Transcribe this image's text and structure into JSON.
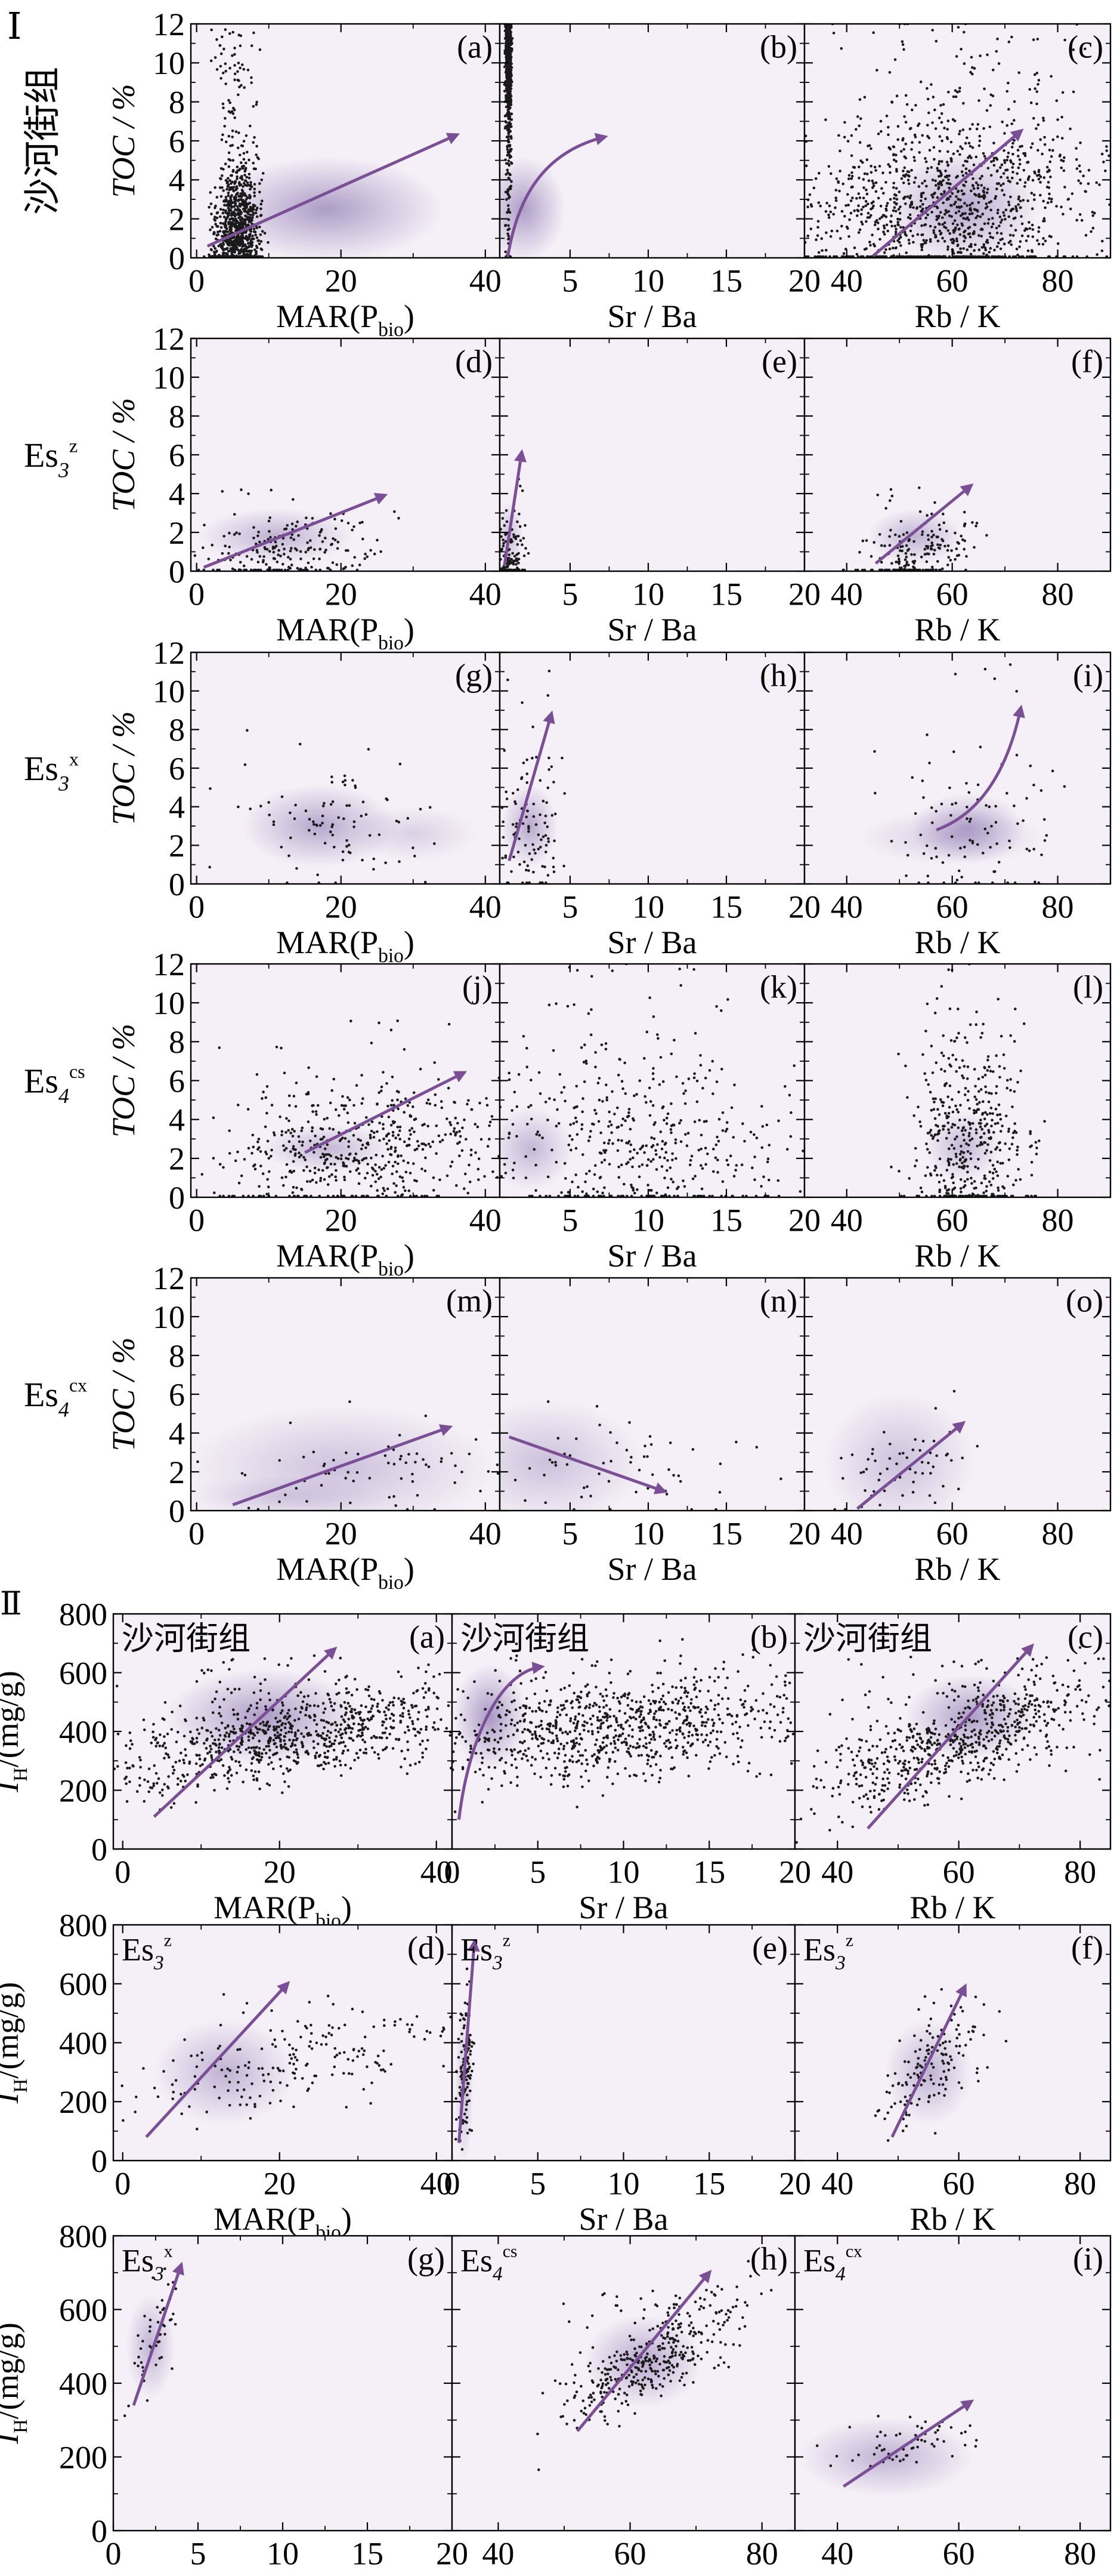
{
  "colors": {
    "background": "#f5f0f7",
    "density": "#6b4f9a",
    "arrow": "#7a4f96",
    "points": "#1a1a1a",
    "axis": "#000000"
  },
  "section_labels": [
    "Ⅰ",
    "Ⅱ"
  ],
  "row_labels_I": [
    {
      "main": "沙河街组",
      "sub": "",
      "sup": ""
    },
    {
      "main": "Es",
      "sub": "3",
      "sup": "z"
    },
    {
      "main": "Es",
      "sub": "3",
      "sup": "x"
    },
    {
      "main": "Es",
      "sub": "4",
      "sup": "cs"
    },
    {
      "main": "Es",
      "sub": "4",
      "sup": "cx"
    }
  ],
  "axis_titles": {
    "toc": "TOC / %",
    "ih_main": "I",
    "ih_sub": "H",
    "ih_rest": "/(mg/g)",
    "mar_main": "MAR(P",
    "mar_sub": "bio",
    "mar_end": ")",
    "srba": "Sr / Ba",
    "rbk": "Rb / K"
  },
  "chart_data": [
    {
      "type": "scatter",
      "section": "I",
      "y_axis": {
        "label": "TOC / %",
        "range": [
          0,
          12
        ],
        "ticks": [
          0,
          2,
          4,
          6,
          8,
          10,
          12
        ]
      },
      "x_axes": {
        "MAR": {
          "range": [
            -8,
            420
          ],
          "ticks": [
            0,
            20,
            40
          ],
          "tick_scale": 10
        },
        "SrBa": {
          "range": [
            0.5,
            20
          ],
          "ticks": [
            5,
            10,
            15,
            20
          ]
        },
        "RbK": {
          "range": [
            32,
            90
          ],
          "ticks": [
            40,
            60,
            80
          ]
        }
      },
      "panels": [
        {
          "row": 0,
          "col": 0,
          "label": "(a)",
          "x": "MAR",
          "cloud": [
            200,
            30,
            80,
            11.5,
            4,
            1200,
            0.1
          ],
          "arrow": [
            [
              15,
              0.6
            ],
            [
              360,
              6.3
            ]
          ],
          "dens": [
            [
              180,
              2.5,
              90,
              1.5,
              0.8
            ]
          ]
        },
        {
          "row": 0,
          "col": 1,
          "label": "(b)",
          "x": "SrBa",
          "cloud": [
            2.5,
            1.2,
            0.9,
            12,
            2.6,
            1100,
            0.15
          ],
          "arrow": [
            [
              1,
              0
            ],
            [
              1.6,
              3.0
            ],
            [
              3.2,
              5.4
            ],
            [
              7.2,
              6.2
            ]
          ],
          "dens": [
            [
              2.0,
              2.5,
              1.5,
              1.5,
              0.8
            ]
          ]
        },
        {
          "row": 0,
          "col": 2,
          "label": "(c)",
          "x": "RbK",
          "cloud": [
            60,
            35,
            80,
            12,
            2.6,
            1300,
            0.12
          ],
          "arrow": [
            [
              45,
              0.1
            ],
            [
              73,
              6.5
            ]
          ],
          "dens": [
            [
              62,
              2.6,
              8,
              1.6,
              0.7
            ]
          ]
        },
        {
          "row": 1,
          "col": 0,
          "label": "(d)",
          "x": "MAR",
          "cloud": [
            105,
            30,
            230,
            4.3,
            0.7,
            220,
            0.3
          ],
          "arrow": [
            [
              10,
              0.2
            ],
            [
              260,
              3.9
            ]
          ],
          "dens": [
            [
              110,
              1.8,
              60,
              0.8,
              0.6
            ]
          ]
        },
        {
          "row": 1,
          "col": 1,
          "label": "(e)",
          "x": "SrBa",
          "cloud": [
            1.1,
            0.3,
            1.9,
            5,
            0.6,
            140,
            0.05
          ],
          "arrow": [
            [
              0.8,
              0.3
            ],
            [
              1.9,
              6.1
            ]
          ],
          "dens": [
            [
              1.1,
              1.8,
              0.5,
              1.0,
              0.5
            ]
          ]
        },
        {
          "row": 1,
          "col": 2,
          "label": "(f)",
          "x": "RbK",
          "cloud": [
            53,
            45,
            62,
            4.2,
            0.6,
            200,
            0.3
          ],
          "arrow": [
            [
              45.5,
              0.4
            ],
            [
              63.5,
              4.4
            ]
          ],
          "dens": [
            [
              53,
              1.8,
              5,
              0.8,
              0.6
            ]
          ]
        },
        {
          "row": 2,
          "col": 0,
          "label": "(g)",
          "x": "MAR",
          "cloud": [
            170,
            70,
            290,
            9,
            3.0,
            90,
            0
          ],
          "arrow": null,
          "dens": [
            [
              170,
              3.0,
              60,
              1.2,
              0.7
            ],
            [
              300,
              2.6,
              50,
              0.8,
              0.3
            ]
          ]
        },
        {
          "row": 2,
          "col": 1,
          "label": "(h)",
          "x": "SrBa",
          "cloud": [
            2.2,
            0.8,
            4.2,
            11,
            2.8,
            110,
            0
          ],
          "arrow": [
            [
              1.1,
              1.2
            ],
            [
              2.3,
              4.6
            ],
            [
              3.8,
              8.8
            ]
          ],
          "dens": [
            [
              2.4,
              3.0,
              1.0,
              1.2,
              0.7
            ]
          ]
        },
        {
          "row": 2,
          "col": 2,
          "label": "(i)",
          "x": "RbK",
          "cloud": [
            63,
            50,
            76,
            11,
            2.8,
            100,
            0
          ],
          "arrow": [
            [
              57,
              2.8
            ],
            [
              69,
              4.0
            ],
            [
              73,
              9.1
            ]
          ],
          "dens": [
            [
              63,
              2.9,
              6,
              1.0,
              0.7
            ],
            [
              60,
              2.4,
              10,
              0.8,
              0.35
            ]
          ]
        },
        {
          "row": 3,
          "col": 0,
          "label": "(j)",
          "x": "MAR",
          "cloud": [
            190,
            80,
            380,
            9,
            2.3,
            550,
            0.15
          ],
          "arrow": [
            [
              150,
              2.3
            ],
            [
              370,
              6.4
            ]
          ],
          "dens": [
            [
              180,
              2.5,
              50,
              0.7,
              0.55
            ]
          ]
        },
        {
          "row": 3,
          "col": 1,
          "label": "(k)",
          "x": "SrBa",
          "cloud": [
            3.0,
            1.0,
            17,
            12,
            2.8,
            480,
            0
          ],
          "arrow": null,
          "dens": [
            [
              2.5,
              2.5,
              1.5,
              1.2,
              0.55
            ]
          ]
        },
        {
          "row": 3,
          "col": 2,
          "label": "(l)",
          "x": "RbK",
          "cloud": [
            62,
            54,
            72,
            12,
            2.8,
            450,
            0
          ],
          "arrow": null,
          "dens": [
            [
              62,
              2.6,
              4,
              1.0,
              0.55
            ]
          ]
        },
        {
          "row": 4,
          "col": 0,
          "label": "(m)",
          "x": "MAR",
          "cloud": [
            200,
            60,
            380,
            6,
            2.0,
            70,
            0.15
          ],
          "arrow": [
            [
              50,
              0.3
            ],
            [
              350,
              4.3
            ]
          ],
          "dens": [
            [
              200,
              2.2,
              120,
              1.8,
              0.45
            ],
            [
              120,
              0.7,
              80,
              0.6,
              0.3
            ]
          ]
        },
        {
          "row": 4,
          "col": 1,
          "label": "(n)",
          "x": "SrBa",
          "cloud": [
            5,
            1.0,
            14,
            7,
            2.0,
            60,
            0
          ],
          "arrow": [
            [
              1.1,
              3.8
            ],
            [
              11,
              1.0
            ]
          ],
          "dens": [
            [
              3.5,
              2.5,
              3.5,
              1.8,
              0.45
            ]
          ]
        },
        {
          "row": 4,
          "col": 2,
          "label": "(o)",
          "x": "RbK",
          "cloud": [
            50,
            40,
            62,
            6,
            2.0,
            60,
            0.15
          ],
          "arrow": [
            [
              42,
              0.1
            ],
            [
              62,
              4.5
            ]
          ],
          "dens": [
            [
              50,
              2.5,
              8,
              2.0,
              0.45
            ]
          ]
        }
      ]
    },
    {
      "type": "scatter",
      "section": "II",
      "y_axis": {
        "label": "I_H/(mg/g)",
        "range": [
          0,
          800
        ],
        "ticks": [
          0,
          200,
          400,
          600,
          800
        ]
      },
      "x_axes": {
        "MAR": {
          "range": [
            -12,
            420
          ],
          "ticks": [
            0,
            20,
            40
          ],
          "tick_scale": 10
        },
        "SrBa": {
          "range": [
            0,
            20
          ],
          "ticks": [
            0,
            5,
            10,
            15,
            20
          ]
        },
        "RbK": {
          "range": [
            33,
            85
          ],
          "ticks": [
            40,
            60,
            80
          ]
        }
      },
      "panels": [
        {
          "row": 0,
          "col": 0,
          "label": "(a)",
          "title": {
            "main": "沙河街组",
            "sub": "",
            "sup": ""
          },
          "x": "MAR",
          "cloud": [
            200,
            40,
            400,
            650,
            380,
            900,
            0.25
          ],
          "arrow": [
            [
              40,
              110
            ],
            [
              270,
              680
            ]
          ],
          "dens": [
            [
              180,
              450,
              70,
              90,
              0.8
            ]
          ]
        },
        {
          "row": 0,
          "col": 1,
          "label": "(b)",
          "title": {
            "main": "沙河街组",
            "sub": "",
            "sup": ""
          },
          "x": "SrBa",
          "cloud": [
            3.5,
            0.5,
            18,
            700,
            380,
            900,
            0.1
          ],
          "arrow": [
            [
              0.4,
              100
            ],
            [
              0.9,
              350
            ],
            [
              2.6,
              600
            ],
            [
              5.2,
              620
            ]
          ],
          "dens": [
            [
              2.2,
              450,
              1.2,
              100,
              0.85
            ]
          ]
        },
        {
          "row": 0,
          "col": 2,
          "label": "(c)",
          "title": {
            "main": "沙河街组",
            "sub": "",
            "sup": ""
          },
          "x": "RbK",
          "cloud": [
            60,
            42,
            78,
            640,
            360,
            700,
            0.4
          ],
          "arrow": [
            [
              45,
              70
            ],
            [
              72,
              690
            ]
          ],
          "dens": [
            [
              62,
              450,
              6,
              80,
              0.8
            ]
          ]
        },
        {
          "row": 1,
          "col": 0,
          "label": "(d)",
          "title": {
            "main": "Es",
            "sub": "3",
            "sup": "z"
          },
          "x": "MAR",
          "cloud": [
            120,
            40,
            380,
            560,
            290,
            200,
            0.3
          ],
          "arrow": [
            [
              30,
              80
            ],
            [
              210,
              600
            ]
          ],
          "dens": [
            [
              130,
              300,
              50,
              100,
              0.6
            ]
          ]
        },
        {
          "row": 1,
          "col": 1,
          "label": "(e)",
          "title": {
            "main": "Es",
            "sub": "3",
            "sup": "z"
          },
          "x": "SrBa",
          "cloud": [
            0.8,
            0.4,
            1.2,
            750,
            300,
            120,
            0.1
          ],
          "arrow": [
            [
              0.4,
              60
            ],
            [
              1.3,
              740
            ]
          ],
          "dens": [
            [
              0.7,
              250,
              0.3,
              150,
              0.5
            ]
          ]
        },
        {
          "row": 1,
          "col": 2,
          "label": "(f)",
          "title": {
            "main": "Es",
            "sub": "3",
            "sup": "z"
          },
          "x": "RbK",
          "cloud": [
            55,
            48,
            62,
            580,
            300,
            150,
            0.4
          ],
          "arrow": [
            [
              49,
              80
            ],
            [
              61,
              590
            ]
          ],
          "dens": [
            [
              55,
              300,
              4,
              100,
              0.6
            ]
          ]
        },
        {
          "row": 2,
          "col": 0,
          "label": "(g)",
          "title": {
            "main": "Es",
            "sub": "3",
            "sup": "x"
          },
          "x": "SrBa",
          "cloud": [
            2.2,
            1.0,
            3.8,
            700,
            500,
            50,
            0.4
          ],
          "arrow": [
            [
              1.2,
              340
            ],
            [
              4.0,
              720
            ]
          ],
          "dens": [
            [
              2.2,
              500,
              0.8,
              80,
              0.6
            ]
          ]
        },
        {
          "row": 2,
          "col": 1,
          "label": "(h)",
          "title": {
            "main": "Es",
            "sub": "4",
            "sup": "cs"
          },
          "x": "RbK",
          "cloud": [
            62,
            52,
            74,
            650,
            450,
            400,
            0.35
          ],
          "arrow": [
            [
              52,
              270
            ],
            [
              72,
              700
            ]
          ],
          "dens": [
            [
              62,
              460,
              5,
              70,
              0.7
            ]
          ]
        },
        {
          "row": 2,
          "col": 2,
          "label": "(i)",
          "title": {
            "main": "Es",
            "sub": "4",
            "sup": "cx"
          },
          "x": "RbK",
          "cloud": [
            50,
            40,
            62,
            320,
            220,
            60,
            0.2
          ],
          "arrow": [
            [
              41,
              120
            ],
            [
              62,
              350
            ]
          ],
          "dens": [
            [
              48,
              200,
              8,
              60,
              0.6
            ]
          ]
        }
      ]
    }
  ]
}
